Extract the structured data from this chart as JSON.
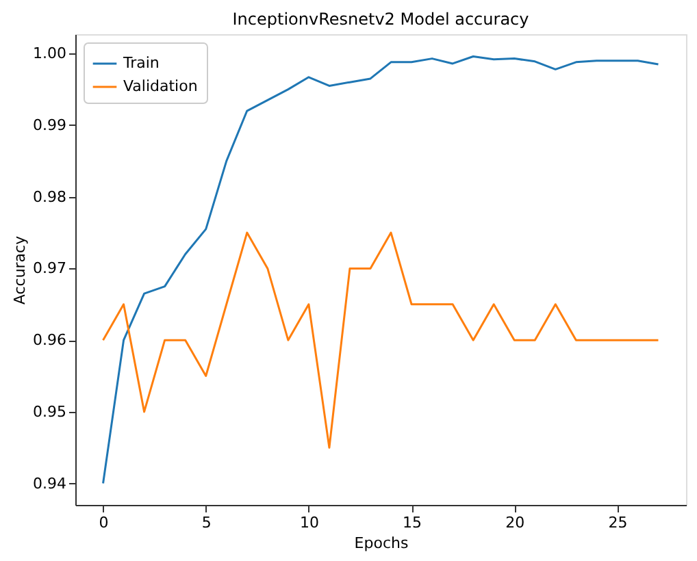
{
  "chart_data": {
    "type": "line",
    "title": "InceptionvResnetv2 Model accuracy",
    "xlabel": "Epochs",
    "ylabel": "Accuracy",
    "x": [
      0,
      1,
      2,
      3,
      4,
      5,
      6,
      7,
      8,
      9,
      10,
      11,
      12,
      13,
      14,
      15,
      16,
      17,
      18,
      19,
      20,
      21,
      22,
      23,
      24,
      25,
      26,
      27
    ],
    "series": [
      {
        "name": "Train",
        "color": "#1f77b4",
        "values": [
          0.94,
          0.96,
          0.9665,
          0.9675,
          0.972,
          0.9755,
          0.985,
          0.992,
          0.9935,
          0.995,
          0.9967,
          0.9955,
          0.996,
          0.9965,
          0.9988,
          0.9988,
          0.9993,
          0.9986,
          0.9996,
          0.9992,
          0.9993,
          0.9989,
          0.9978,
          0.9988,
          0.999,
          0.999,
          0.999,
          0.9985
        ]
      },
      {
        "name": "Validation",
        "color": "#ff7f0e",
        "values": [
          0.96,
          0.965,
          0.95,
          0.96,
          0.96,
          0.955,
          0.965,
          0.975,
          0.97,
          0.96,
          0.965,
          0.945,
          0.97,
          0.97,
          0.975,
          0.965,
          0.965,
          0.965,
          0.96,
          0.965,
          0.96,
          0.96,
          0.965,
          0.96,
          0.96,
          0.96,
          0.96,
          0.96
        ]
      }
    ],
    "xlim": [
      -1.35,
      28.35
    ],
    "ylim": [
      0.937,
      1.0027
    ],
    "xticks": [
      0,
      5,
      10,
      15,
      20,
      25
    ],
    "yticks": [
      {
        "value": 0.94,
        "label": "0.94"
      },
      {
        "value": 0.95,
        "label": "0.95"
      },
      {
        "value": 0.96,
        "label": "0.96"
      },
      {
        "value": 0.97,
        "label": "0.97"
      },
      {
        "value": 0.98,
        "label": "0.98"
      },
      {
        "value": 0.99,
        "label": "0.99"
      },
      {
        "value": 1.0,
        "label": "1.00"
      }
    ],
    "legend": "top left",
    "grid": false,
    "marker": "none",
    "line_style": "solid"
  }
}
